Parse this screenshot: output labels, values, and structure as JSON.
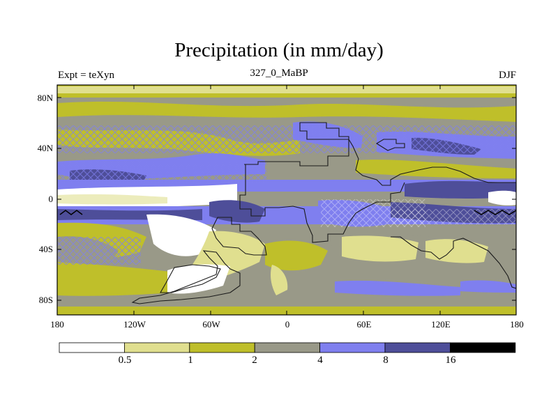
{
  "title": "Precipitation (in mm/day)",
  "subtitle_left": "Expt = teXyn",
  "subtitle_center": "327_0_MaBP",
  "subtitle_right": "DJF",
  "lat_labels": [
    "80N",
    "40N",
    "0",
    "40S",
    "80S"
  ],
  "lon_labels": [
    "180",
    "120W",
    "60W",
    "0",
    "60E",
    "120E",
    "180"
  ],
  "colorbar": {
    "units": "mm/day",
    "levels": [
      "0.5",
      "1",
      "2",
      "4",
      "8",
      "16"
    ],
    "colors": [
      "#ffffff",
      "#e0df8f",
      "#bfbf2a",
      "#999988",
      "#7f7fef",
      "#4e4e99",
      "#000000"
    ]
  }
}
